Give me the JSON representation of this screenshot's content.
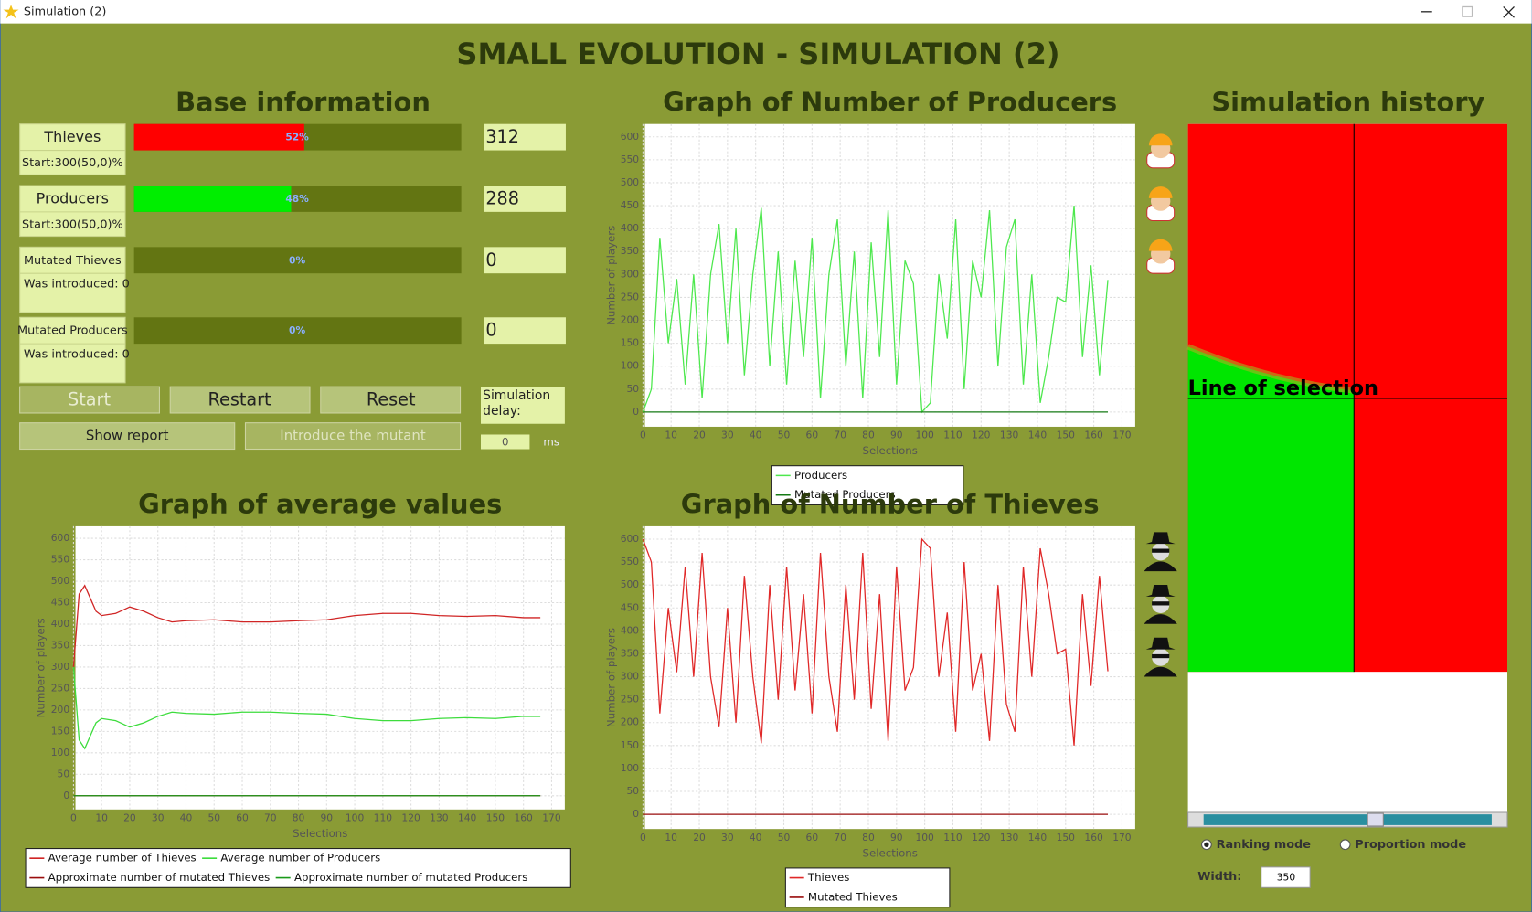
{
  "window": {
    "title": "Simulation (2)"
  },
  "header": {
    "title": "SMALL EVOLUTION - SIMULATION (2)"
  },
  "base_info": {
    "title": "Base information",
    "rows": [
      {
        "name": "Thieves",
        "note": "Start:300(50,0)%",
        "percent": 52,
        "percent_label": "52%",
        "count": 312,
        "color": "#ff0000"
      },
      {
        "name": "Producers",
        "note": "Start:300(50,0)%",
        "percent": 48,
        "percent_label": "48%",
        "count": 288,
        "color": "#00ee00"
      },
      {
        "name": "Mutated Thieves",
        "note": "Was introduced: 0",
        "percent": 0,
        "percent_label": "0%",
        "count": 0,
        "color": "#990000"
      },
      {
        "name": "Mutated Producers",
        "note": "Was introduced: 0",
        "percent": 0,
        "percent_label": "0%",
        "count": 0,
        "color": "#119911"
      }
    ],
    "buttons": [
      "Start",
      "Restart",
      "Reset",
      "Show report",
      "Introduce the mutant"
    ],
    "delay_label": "Simulation delay:",
    "delay_value": 0,
    "delay_unit": "ms"
  },
  "charts": {
    "producers": {
      "type": "line",
      "title": "Graph of Number of Producers",
      "x_label": "Selections",
      "y_label": "Number of players",
      "x": [
        0,
        3,
        6,
        9,
        12,
        15,
        18,
        21,
        24,
        27,
        30,
        33,
        36,
        39,
        42,
        45,
        48,
        51,
        54,
        57,
        60,
        63,
        66,
        69,
        72,
        75,
        78,
        81,
        84,
        87,
        90,
        93,
        96,
        99,
        102,
        105,
        108,
        111,
        114,
        117,
        120,
        123,
        126,
        129,
        132,
        135,
        138,
        141,
        144,
        147,
        150,
        153,
        156,
        159,
        162,
        165
      ],
      "series": [
        {
          "name": "Producers",
          "color": "#4ee84e",
          "values": [
            0,
            50,
            380,
            150,
            290,
            60,
            300,
            30,
            300,
            410,
            150,
            400,
            80,
            300,
            445,
            100,
            350,
            60,
            330,
            120,
            380,
            30,
            300,
            420,
            100,
            350,
            30,
            370,
            120,
            440,
            60,
            330,
            280,
            0,
            20,
            300,
            160,
            420,
            50,
            330,
            250,
            440,
            100,
            360,
            420,
            60,
            300,
            20,
            120,
            250,
            240,
            450,
            120,
            320,
            80,
            288
          ]
        },
        {
          "name": "Mutated Producers",
          "color": "#157a15",
          "values": [
            0,
            0,
            0,
            0,
            0,
            0,
            0,
            0,
            0,
            0,
            0,
            0,
            0,
            0,
            0,
            0,
            0,
            0,
            0,
            0,
            0,
            0,
            0,
            0,
            0,
            0,
            0,
            0,
            0,
            0,
            0,
            0,
            0,
            0,
            0,
            0,
            0,
            0,
            0,
            0,
            0,
            0,
            0,
            0,
            0,
            0,
            0,
            0,
            0,
            0,
            0,
            0,
            0,
            0,
            0,
            0
          ]
        }
      ],
      "xlim": [
        0,
        174
      ],
      "ylim": [
        -32,
        628
      ],
      "xticks": [
        0,
        10,
        20,
        30,
        40,
        50,
        60,
        70,
        80,
        90,
        100,
        110,
        120,
        130,
        140,
        150,
        160,
        170
      ],
      "yticks": [
        0,
        50,
        100,
        150,
        200,
        250,
        300,
        350,
        400,
        450,
        500,
        550,
        600
      ],
      "grid": true
    },
    "thieves": {
      "type": "line",
      "title": "Graph of Number of Thieves",
      "x_label": "Selections",
      "y_label": "Number of players",
      "x": [
        0,
        3,
        6,
        9,
        12,
        15,
        18,
        21,
        24,
        27,
        30,
        33,
        36,
        39,
        42,
        45,
        48,
        51,
        54,
        57,
        60,
        63,
        66,
        69,
        72,
        75,
        78,
        81,
        84,
        87,
        90,
        93,
        96,
        99,
        102,
        105,
        108,
        111,
        114,
        117,
        120,
        123,
        126,
        129,
        132,
        135,
        138,
        141,
        144,
        147,
        150,
        153,
        156,
        159,
        162,
        165
      ],
      "series": [
        {
          "name": "Thieves",
          "color": "#e02828",
          "values": [
            600,
            550,
            220,
            450,
            310,
            540,
            300,
            570,
            300,
            190,
            450,
            200,
            520,
            300,
            155,
            500,
            250,
            540,
            270,
            480,
            220,
            570,
            300,
            180,
            500,
            250,
            570,
            230,
            480,
            160,
            540,
            270,
            320,
            600,
            580,
            300,
            440,
            180,
            550,
            270,
            350,
            160,
            500,
            240,
            180,
            540,
            300,
            580,
            480,
            350,
            360,
            150,
            480,
            280,
            520,
            312
          ]
        },
        {
          "name": "Mutated Thieves",
          "color": "#9a0d0d",
          "values": [
            0,
            0,
            0,
            0,
            0,
            0,
            0,
            0,
            0,
            0,
            0,
            0,
            0,
            0,
            0,
            0,
            0,
            0,
            0,
            0,
            0,
            0,
            0,
            0,
            0,
            0,
            0,
            0,
            0,
            0,
            0,
            0,
            0,
            0,
            0,
            0,
            0,
            0,
            0,
            0,
            0,
            0,
            0,
            0,
            0,
            0,
            0,
            0,
            0,
            0,
            0,
            0,
            0,
            0,
            0,
            0
          ]
        }
      ],
      "xlim": [
        0,
        174
      ],
      "ylim": [
        -32,
        628
      ],
      "xticks": [
        0,
        10,
        20,
        30,
        40,
        50,
        60,
        70,
        80,
        90,
        100,
        110,
        120,
        130,
        140,
        150,
        160,
        170
      ],
      "yticks": [
        0,
        50,
        100,
        150,
        200,
        250,
        300,
        350,
        400,
        450,
        500,
        550,
        600
      ],
      "grid": true
    },
    "average": {
      "type": "line",
      "title": "Graph of average values",
      "x_label": "Selections",
      "y_label": "Number of players",
      "x": [
        0,
        2,
        4,
        6,
        8,
        10,
        15,
        20,
        25,
        30,
        35,
        40,
        50,
        60,
        70,
        80,
        90,
        100,
        110,
        120,
        130,
        140,
        150,
        160,
        166
      ],
      "series": [
        {
          "name": "Average number of Thieves",
          "color": "#d02525",
          "values": [
            300,
            470,
            490,
            460,
            430,
            420,
            425,
            440,
            430,
            415,
            405,
            408,
            410,
            405,
            405,
            408,
            410,
            420,
            425,
            425,
            420,
            418,
            420,
            415,
            415
          ]
        },
        {
          "name": "Average number of Producers",
          "color": "#3ddc3d",
          "values": [
            300,
            130,
            110,
            140,
            170,
            180,
            175,
            160,
            170,
            185,
            195,
            192,
            190,
            195,
            195,
            192,
            190,
            180,
            175,
            175,
            180,
            182,
            180,
            185,
            185
          ]
        },
        {
          "name": "Approximate number of mutated Thieves",
          "color": "#9a0d0d",
          "values": [
            0,
            0,
            0,
            0,
            0,
            0,
            0,
            0,
            0,
            0,
            0,
            0,
            0,
            0,
            0,
            0,
            0,
            0,
            0,
            0,
            0,
            0,
            0,
            0,
            0
          ]
        },
        {
          "name": "Approximate number of mutated Producers",
          "color": "#1a9a1a",
          "values": [
            0,
            0,
            0,
            0,
            0,
            0,
            0,
            0,
            0,
            0,
            0,
            0,
            0,
            0,
            0,
            0,
            0,
            0,
            0,
            0,
            0,
            0,
            0,
            0,
            0
          ]
        }
      ],
      "xlim": [
        0,
        174
      ],
      "ylim": [
        -32,
        628
      ],
      "xticks": [
        0,
        10,
        20,
        30,
        40,
        50,
        60,
        70,
        80,
        90,
        100,
        110,
        120,
        130,
        140,
        150,
        160,
        170
      ],
      "yticks": [
        0,
        50,
        100,
        150,
        200,
        250,
        300,
        350,
        400,
        450,
        500,
        550,
        600
      ],
      "grid": true
    }
  },
  "history": {
    "title": "Simulation history",
    "line_label": "Line of selection",
    "ranking_mode": "Ranking mode",
    "proportion_mode": "Proportion mode",
    "width_label": "Width:",
    "width_value": 350
  }
}
